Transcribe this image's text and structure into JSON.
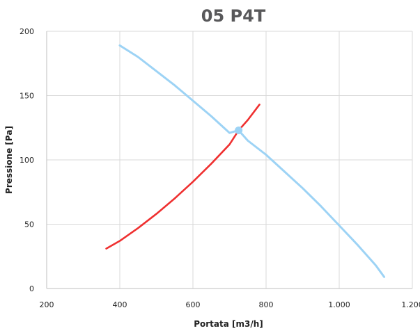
{
  "chart_data": {
    "type": "line",
    "title": "05 P4T",
    "xlabel": "Portata [m3/h]",
    "ylabel": "Pressione [Pa]",
    "xlim": [
      200,
      1200
    ],
    "ylim": [
      0,
      200
    ],
    "x_ticks": [
      200,
      400,
      600,
      800,
      1000,
      1200
    ],
    "x_tick_labels": [
      "200",
      "400",
      "600",
      "800",
      "1.000",
      "1.200"
    ],
    "y_ticks": [
      0,
      50,
      100,
      150,
      200
    ],
    "y_tick_labels": [
      "0",
      "50",
      "100",
      "150",
      "200"
    ],
    "grid": true,
    "series": [
      {
        "color": "#9dd3f5",
        "x": [
          400,
          450,
          500,
          550,
          600,
          650,
          700,
          725,
          750,
          800,
          850,
          900,
          950,
          1000,
          1050,
          1100,
          1123
        ],
        "y": [
          189,
          180,
          169,
          158,
          146,
          134,
          121,
          123,
          115,
          104,
          91,
          78,
          64,
          49,
          34,
          18,
          9
        ]
      },
      {
        "color": "#ef3030",
        "x": [
          363,
          400,
          450,
          500,
          550,
          600,
          650,
          700,
          725,
          750,
          782
        ],
        "y": [
          31,
          37,
          47,
          58,
          70,
          83,
          97,
          112,
          123,
          131,
          143
        ]
      }
    ],
    "markers": [
      {
        "x": 725,
        "y": 123,
        "color": "#9dd3f5"
      }
    ]
  }
}
